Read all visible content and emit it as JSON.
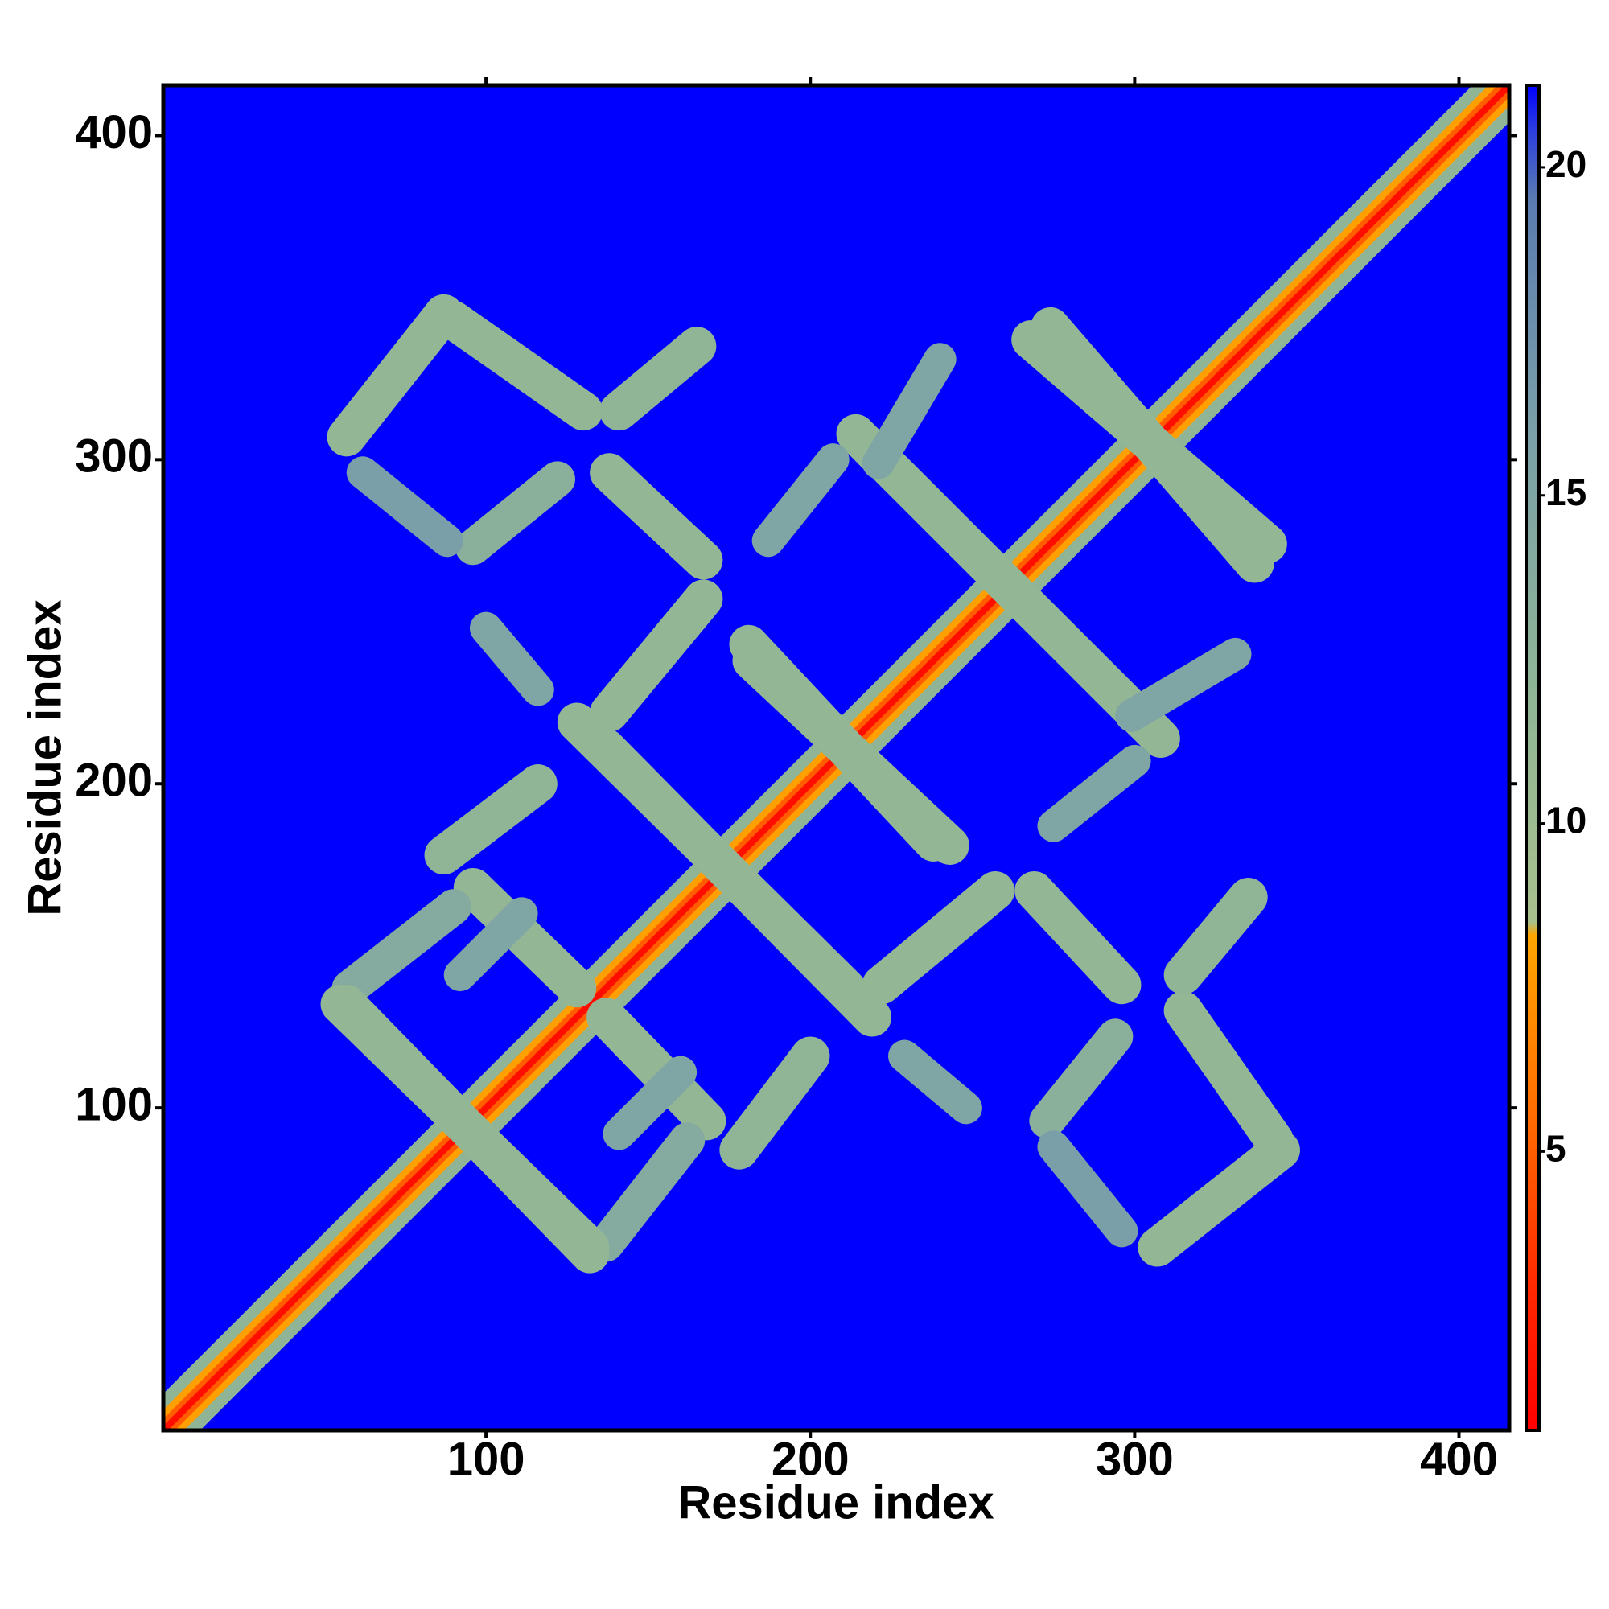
{
  "chart_data": {
    "type": "heatmap",
    "symmetric": true,
    "xlabel": "Residue index",
    "ylabel": "Residue index",
    "xlim": [
      0.5,
      415.5
    ],
    "ylim": [
      0.5,
      415.5
    ],
    "xticks": [
      100,
      200,
      300,
      400
    ],
    "yticks": [
      100,
      200,
      300,
      400
    ],
    "clim": [
      0.75,
      21.25
    ],
    "cticks": [
      5,
      10,
      15,
      20
    ],
    "background": 21.25,
    "colormap": [
      {
        "value": 0.75,
        "color": "#ff0000"
      },
      {
        "value": 3,
        "color": "#ff2a00"
      },
      {
        "value": 5.5,
        "color": "#ff6a00"
      },
      {
        "value": 8.3,
        "color": "#ffa500"
      },
      {
        "value": 8.5,
        "color": "#a8c08c"
      },
      {
        "value": 12,
        "color": "#8fb596"
      },
      {
        "value": 16,
        "color": "#7a9fa8"
      },
      {
        "value": 19.5,
        "color": "#5a7cb0"
      },
      {
        "value": 20.6,
        "color": "#2a3ce0"
      },
      {
        "value": 21.25,
        "color": "#0000ff"
      }
    ],
    "segments": [
      {
        "from": [
          1,
          1
        ],
        "to": [
          415,
          415
        ],
        "width": 16,
        "value": 12
      },
      {
        "from": [
          1,
          1
        ],
        "to": [
          415,
          415
        ],
        "width": 9,
        "value": 8
      },
      {
        "from": [
          1,
          1
        ],
        "to": [
          415,
          415
        ],
        "width": 5,
        "value": 5
      },
      {
        "from": [
          1,
          1
        ],
        "to": [
          415,
          415
        ],
        "width": 2,
        "value": 1.5
      },
      {
        "from": [
          57,
          307
        ],
        "to": [
          87,
          345
        ],
        "width": 12,
        "value": 11.5
      },
      {
        "from": [
          90,
          343
        ],
        "to": [
          130,
          315
        ],
        "width": 12,
        "value": 11.5
      },
      {
        "from": [
          141,
          315
        ],
        "to": [
          165,
          335
        ],
        "width": 12,
        "value": 12
      },
      {
        "from": [
          96,
          273
        ],
        "to": [
          122,
          294
        ],
        "width": 11,
        "value": 13
      },
      {
        "from": [
          138,
          296
        ],
        "to": [
          167,
          269
        ],
        "width": 12,
        "value": 11.5
      },
      {
        "from": [
          138,
          222
        ],
        "to": [
          167,
          257
        ],
        "width": 12,
        "value": 11.5
      },
      {
        "from": [
          100,
          248
        ],
        "to": [
          116,
          229
        ],
        "width": 10,
        "value": 15
      },
      {
        "from": [
          182,
          238
        ],
        "to": [
          243,
          181
        ],
        "width": 12,
        "value": 11.5
      },
      {
        "from": [
          214,
          308
        ],
        "to": [
          303,
          219
        ],
        "width": 12,
        "value": 11.5
      },
      {
        "from": [
          221,
          299
        ],
        "to": [
          240,
          331
        ],
        "width": 10,
        "value": 15
      },
      {
        "from": [
          268,
          337
        ],
        "to": [
          341,
          274
        ],
        "width": 12,
        "value": 11.5
      },
      {
        "from": [
          187,
          275
        ],
        "to": [
          207,
          300
        ],
        "width": 10,
        "value": 15
      },
      {
        "from": [
          87,
          178
        ],
        "to": [
          116,
          200
        ],
        "width": 12,
        "value": 12
      },
      {
        "from": [
          128,
          219
        ],
        "to": [
          211,
          137
        ],
        "width": 12,
        "value": 11.5
      },
      {
        "from": [
          96,
          168
        ],
        "to": [
          128,
          137
        ],
        "width": 12,
        "value": 11.5
      },
      {
        "from": [
          58,
          137
        ],
        "to": [
          90,
          162
        ],
        "width": 11,
        "value": 14
      },
      {
        "from": [
          55,
          132
        ],
        "to": [
          132,
          57
        ],
        "width": 12,
        "value": 11.5
      },
      {
        "from": [
          92,
          141
        ],
        "to": [
          111,
          160
        ],
        "width": 10,
        "value": 15
      },
      {
        "from": [
          62,
          296
        ],
        "to": [
          88,
          275
        ],
        "width": 10,
        "value": 16
      }
    ]
  }
}
